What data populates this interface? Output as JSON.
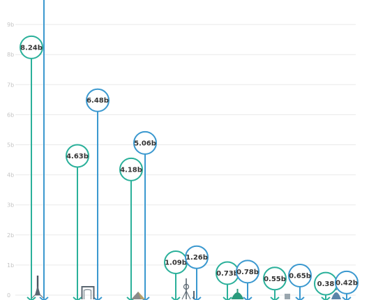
{
  "chart_data": {
    "type": "lollipop",
    "y_ticks": [
      "0",
      "1b",
      "2b",
      "3b",
      "4b",
      "5b",
      "6b",
      "7b",
      "8b",
      "9b"
    ],
    "ylim": [
      0,
      9.8
    ],
    "grid": true,
    "pairs": [
      {
        "a": {
          "value": 8.24,
          "label": "8.24b"
        },
        "b": {
          "value": 10.2,
          "label": ""
        },
        "landmark": "tower-icon"
      },
      {
        "a": {
          "value": 4.63,
          "label": "4.63b"
        },
        "b": {
          "value": 6.48,
          "label": "6.48b"
        },
        "landmark": "arch-icon"
      },
      {
        "a": {
          "value": 4.18,
          "label": "4.18b"
        },
        "b": {
          "value": 5.06,
          "label": "5.06b"
        },
        "landmark": "pyramid-icon"
      },
      {
        "a": {
          "value": 1.09,
          "label": "1.09b"
        },
        "b": {
          "value": 1.26,
          "label": "1.26b"
        },
        "landmark": "tv-tower-icon"
      },
      {
        "a": {
          "value": 0.73,
          "label": "0.73b"
        },
        "b": {
          "value": 0.78,
          "label": "0.78b"
        },
        "landmark": "mosque-icon"
      },
      {
        "a": {
          "value": 0.55,
          "label": "0.55b"
        },
        "b": {
          "value": 0.65,
          "label": "0.65b"
        },
        "landmark": "building-icon"
      },
      {
        "a": {
          "value": 0.38,
          "label": "0.38"
        },
        "b": {
          "value": 0.42,
          "label": "0.42b"
        },
        "landmark": "dome-icon"
      }
    ],
    "colors": {
      "a": "#2ab09a",
      "b": "#3a98cf",
      "grid": "#e9e9e9",
      "tick": "#c4c4c4",
      "label": "#333333"
    }
  }
}
